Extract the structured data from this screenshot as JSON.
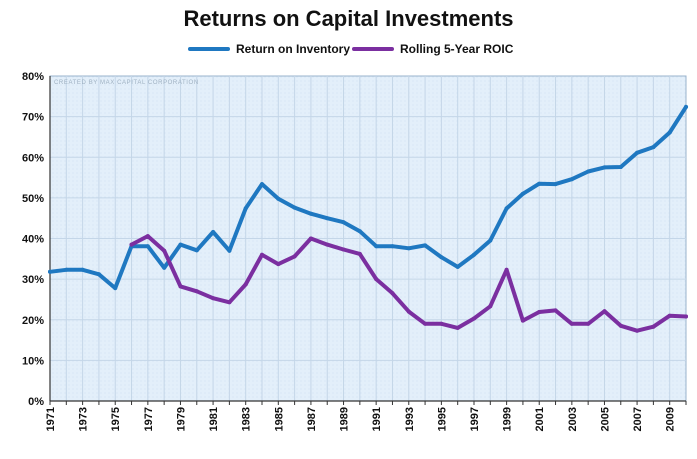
{
  "colors": {
    "series_1": "#1f78c1",
    "series_2": "#7b2fa0",
    "plot_bg": "#e3effa",
    "grid": "#c4d6e8"
  },
  "chart_data": {
    "type": "line",
    "title": "Returns on Capital Investments",
    "watermark": "CREATED BY MAX CAPITAL CORPORATION",
    "xlabel": "",
    "ylabel": "",
    "x_tick_labels": [
      "1971",
      "1973",
      "1975",
      "1977",
      "1979",
      "1981",
      "1983",
      "1985",
      "1987",
      "1989",
      "1991",
      "1993",
      "1995",
      "1997",
      "1999",
      "2001",
      "2003",
      "2005",
      "2007",
      "2009"
    ],
    "y_tick_labels": [
      "0%",
      "10%",
      "20%",
      "30%",
      "40%",
      "50%",
      "60%",
      "70%",
      "80%"
    ],
    "xlim": [
      1971,
      2010
    ],
    "ylim": [
      0,
      80
    ],
    "grid": true,
    "legend_position": "top",
    "series": [
      {
        "name": "Return on Inventory",
        "x": [
          1971,
          1972,
          1973,
          1974,
          1975,
          1976,
          1977,
          1978,
          1979,
          1980,
          1981,
          1982,
          1983,
          1984,
          1985,
          1986,
          1987,
          1988,
          1989,
          1990,
          1991,
          1992,
          1993,
          1994,
          1995,
          1996,
          1997,
          1998,
          1999,
          2000,
          2001,
          2002,
          2003,
          2004,
          2005,
          2006,
          2007,
          2008,
          2009,
          2010
        ],
        "values": [
          31.8,
          32.3,
          32.3,
          31.2,
          27.8,
          38.1,
          38.1,
          32.8,
          38.5,
          37.1,
          41.6,
          37.0,
          47.4,
          53.4,
          49.8,
          47.6,
          46.1,
          45.0,
          44.0,
          41.8,
          38.1,
          38.1,
          37.6,
          38.3,
          35.4,
          33.0,
          36.0,
          39.5,
          47.4,
          51.0,
          53.5,
          53.4,
          54.6,
          56.5,
          57.5,
          57.6,
          61.1,
          62.5,
          66.1,
          72.4
        ]
      },
      {
        "name": "Rolling 5-Year ROIC",
        "x": [
          1976,
          1977,
          1978,
          1979,
          1980,
          1981,
          1982,
          1983,
          1984,
          1985,
          1986,
          1987,
          1988,
          1989,
          1990,
          1991,
          1992,
          1993,
          1994,
          1995,
          1996,
          1997,
          1998,
          1999,
          2000,
          2001,
          2002,
          2003,
          2004,
          2005,
          2006,
          2007,
          2008,
          2009,
          2010
        ],
        "values": [
          38.5,
          40.6,
          37.0,
          28.2,
          27.0,
          25.3,
          24.3,
          28.7,
          36.0,
          33.7,
          35.6,
          40.0,
          38.5,
          37.3,
          36.2,
          30.0,
          26.5,
          22.0,
          19.0,
          19.0,
          18.0,
          20.3,
          23.3,
          32.3,
          19.8,
          21.9,
          22.3,
          19.0,
          19.0,
          22.1,
          18.5,
          17.3,
          18.3,
          21.0,
          20.8
        ]
      }
    ]
  }
}
